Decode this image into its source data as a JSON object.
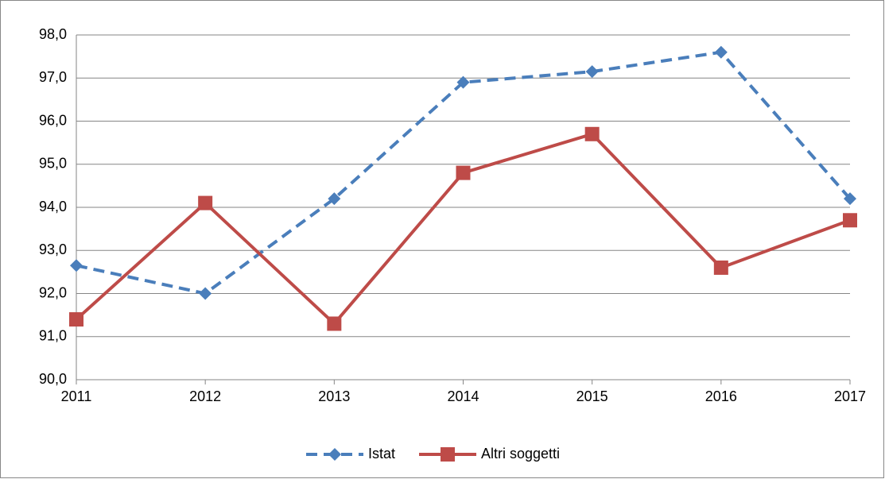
{
  "chart_data": {
    "type": "line",
    "categories": [
      "2011",
      "2012",
      "2013",
      "2014",
      "2015",
      "2016",
      "2017"
    ],
    "series": [
      {
        "name": "Istat",
        "color": "#4a7ebb",
        "line_style": "dashed",
        "marker": "diamond",
        "values": [
          92.65,
          92.0,
          94.2,
          96.9,
          97.15,
          97.6,
          94.2
        ]
      },
      {
        "name": "Altri soggetti",
        "color": "#be4b48",
        "line_style": "solid",
        "marker": "square",
        "values": [
          91.4,
          94.1,
          91.3,
          94.8,
          95.7,
          92.6,
          93.7
        ]
      }
    ],
    "ylim": [
      90,
      98
    ],
    "yticks": [
      {
        "value": 90,
        "label": "90,0"
      },
      {
        "value": 91,
        "label": "91,0"
      },
      {
        "value": 92,
        "label": "92,0"
      },
      {
        "value": 93,
        "label": "93,0"
      },
      {
        "value": 94,
        "label": "94,0"
      },
      {
        "value": 95,
        "label": "95,0"
      },
      {
        "value": 96,
        "label": "96,0"
      },
      {
        "value": 97,
        "label": "97,0"
      },
      {
        "value": 98,
        "label": "98,0"
      }
    ],
    "grid": true,
    "legend": "bottom"
  }
}
